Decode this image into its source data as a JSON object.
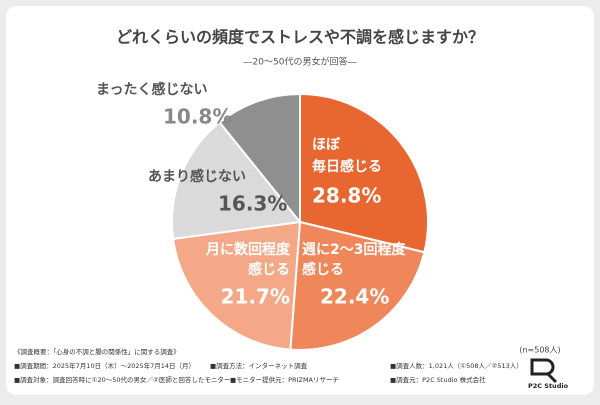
{
  "chart_data": {
    "type": "pie",
    "title": "どれくらいの頻度でストレスや不調を感じますか？",
    "subtitle": "―20〜50代の男女が回答―",
    "categories": [
      [
        "ほぼ",
        "毎日感じる"
      ],
      [
        "週に2〜3回程度",
        "感じる"
      ],
      [
        "月に数回程度",
        "感じる"
      ],
      [
        "あまり感じない"
      ],
      [
        "まったく感じない"
      ]
    ],
    "values": [
      28.8,
      22.4,
      21.7,
      16.3,
      10.8
    ],
    "value_labels": [
      "28.8%",
      "22.4%",
      "21.7%",
      "16.3%",
      "10.8%"
    ],
    "colors": [
      "#e8662f",
      "#f0875a",
      "#f4a887",
      "#dadada",
      "#8f8f8f"
    ],
    "sample": "(n=508人)",
    "survey_notes": [
      "《調査概要：「心身の不調と腸の関係性」に関する調査》",
      "■調査期間：2025年7月10日（木）〜2025年7月14日（月）",
      "■調査方法：インターネット調査",
      "■調査人数：1,021人（①508人／②513人）",
      "■調査対象：調査回答時に①20〜50代の男女／②医師と回答したモニター",
      "■モニター提供元：PRIZMAリサーチ",
      "■調査元：P2C Studio 株式会社"
    ],
    "logo": "P2C Studio"
  }
}
